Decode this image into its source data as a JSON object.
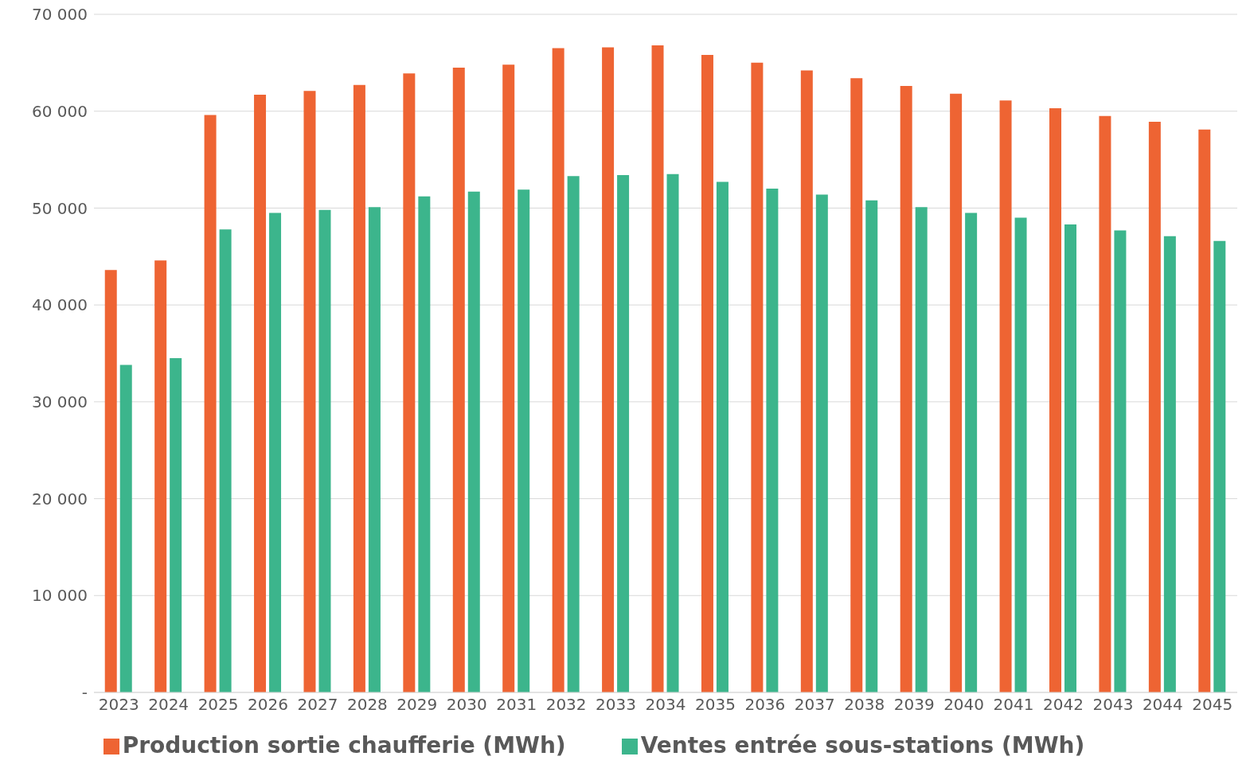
{
  "chart_data": {
    "type": "bar",
    "categories": [
      "2023",
      "2024",
      "2025",
      "2026",
      "2027",
      "2028",
      "2029",
      "2030",
      "2031",
      "2032",
      "2033",
      "2034",
      "2035",
      "2036",
      "2037",
      "2038",
      "2039",
      "2040",
      "2041",
      "2042",
      "2043",
      "2044",
      "2045"
    ],
    "series": [
      {
        "name": "Production sortie chaufferie (MWh)",
        "color": "#ee6433",
        "values": [
          43600,
          44600,
          59600,
          61700,
          62100,
          62700,
          63900,
          64500,
          64800,
          66500,
          66600,
          66800,
          65800,
          65000,
          64200,
          63400,
          62600,
          61800,
          61100,
          60300,
          59500,
          58900,
          58100
        ]
      },
      {
        "name": "Ventes entrée sous-stations (MWh)",
        "color": "#3cb58c",
        "values": [
          33800,
          34500,
          47800,
          49500,
          49800,
          50100,
          51200,
          51700,
          51900,
          53300,
          53400,
          53500,
          52700,
          52000,
          51400,
          50800,
          50100,
          49500,
          49000,
          48300,
          47700,
          47100,
          46600
        ]
      }
    ],
    "ylim": [
      0,
      70000
    ],
    "yticks": [
      {
        "value": 0,
        "label": "-"
      },
      {
        "value": 10000,
        "label": "10 000"
      },
      {
        "value": 20000,
        "label": "20 000"
      },
      {
        "value": 30000,
        "label": "30 000"
      },
      {
        "value": 40000,
        "label": "40 000"
      },
      {
        "value": 50000,
        "label": "50 000"
      },
      {
        "value": 60000,
        "label": "60 000"
      },
      {
        "value": 70000,
        "label": "70 000"
      }
    ],
    "grid": "y",
    "legend": "bottom"
  }
}
